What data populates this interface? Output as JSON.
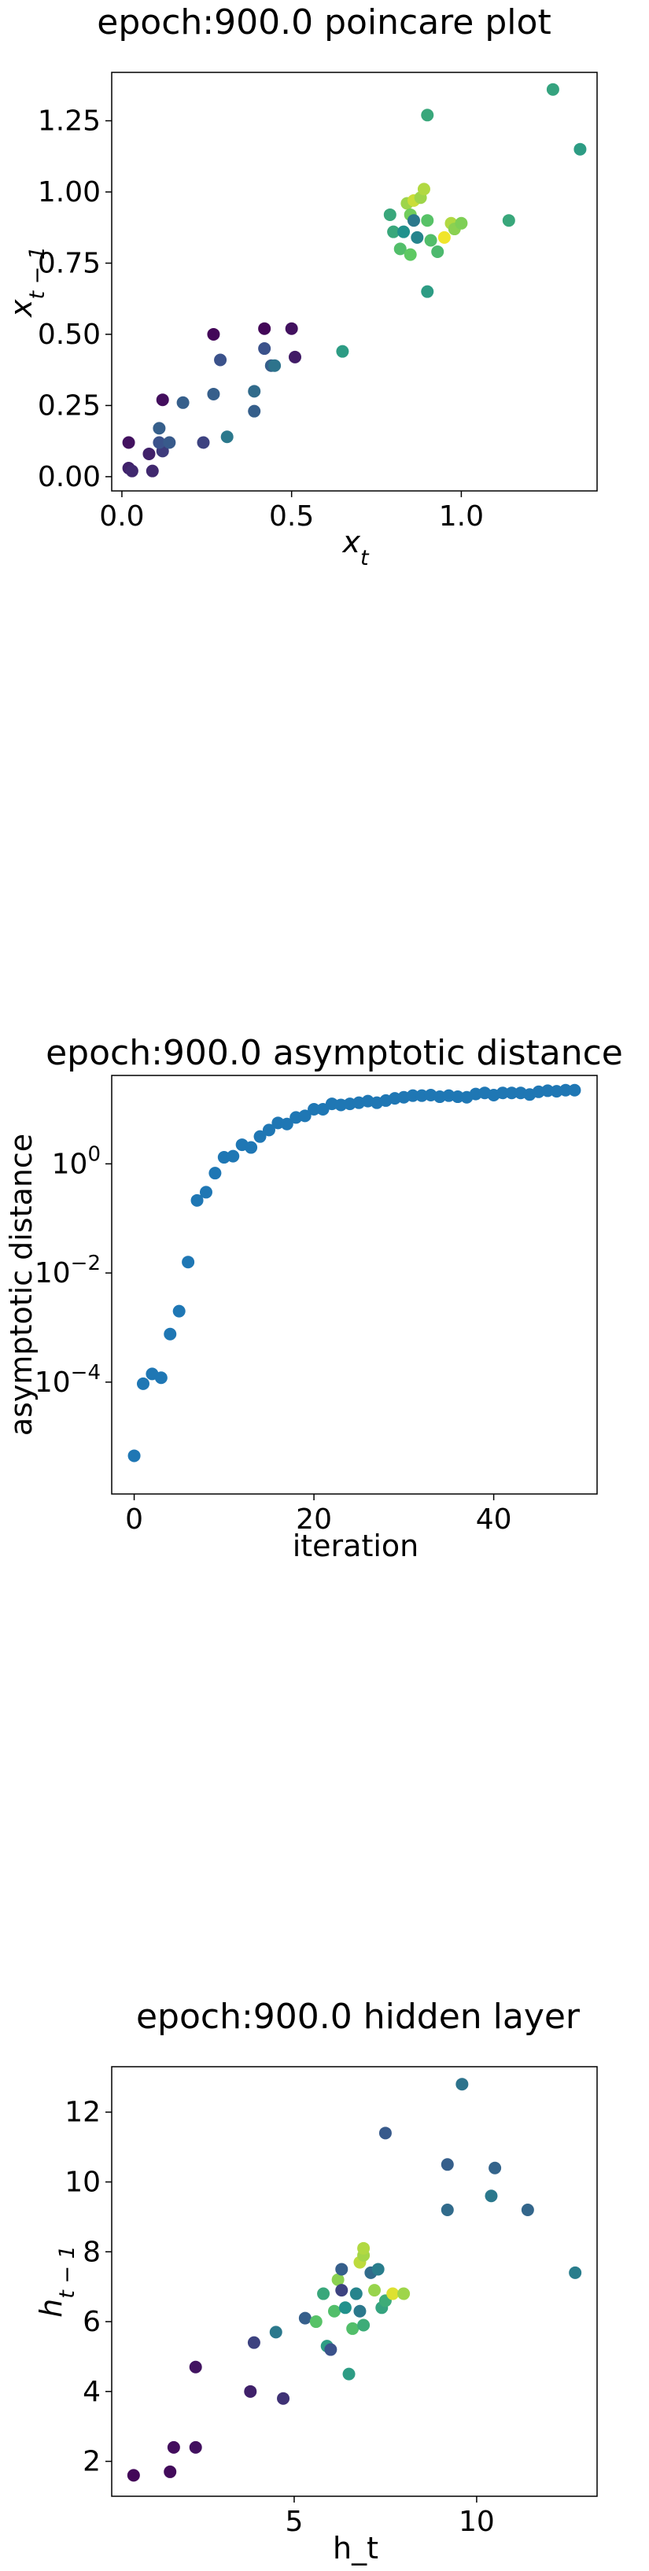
{
  "colors": {
    "series": "#1f77b4"
  },
  "chart_data": [
    {
      "type": "scatter",
      "title": "epoch:900.0 poincare plot",
      "xlabel": "x_t",
      "ylabel": "x_{t-1}",
      "xlim": [
        -0.03,
        1.4
      ],
      "ylim": [
        -0.05,
        1.42
      ],
      "xticks": [
        0.0,
        0.5,
        1.0
      ],
      "xtick_labels": [
        "0.0",
        "0.5",
        "1.0"
      ],
      "yticks": [
        0.0,
        0.25,
        0.5,
        0.75,
        1.0,
        1.25
      ],
      "ytick_labels": [
        "0.00",
        "0.25",
        "0.50",
        "0.75",
        "1.00",
        "1.25"
      ],
      "colormap": "viridis",
      "points": [
        {
          "x": 0.02,
          "y": 0.12,
          "c": 0.05
        },
        {
          "x": 0.02,
          "y": 0.03,
          "c": 0.1
        },
        {
          "x": 0.03,
          "y": 0.02,
          "c": 0.12
        },
        {
          "x": 0.08,
          "y": 0.08,
          "c": 0.1
        },
        {
          "x": 0.09,
          "y": 0.02,
          "c": 0.12
        },
        {
          "x": 0.12,
          "y": 0.09,
          "c": 0.18
        },
        {
          "x": 0.11,
          "y": 0.12,
          "c": 0.25
        },
        {
          "x": 0.11,
          "y": 0.17,
          "c": 0.3
        },
        {
          "x": 0.12,
          "y": 0.27,
          "c": 0.04
        },
        {
          "x": 0.14,
          "y": 0.12,
          "c": 0.28
        },
        {
          "x": 0.18,
          "y": 0.26,
          "c": 0.3
        },
        {
          "x": 0.24,
          "y": 0.12,
          "c": 0.2
        },
        {
          "x": 0.27,
          "y": 0.29,
          "c": 0.3
        },
        {
          "x": 0.27,
          "y": 0.5,
          "c": 0.02
        },
        {
          "x": 0.29,
          "y": 0.41,
          "c": 0.25
        },
        {
          "x": 0.31,
          "y": 0.14,
          "c": 0.4
        },
        {
          "x": 0.39,
          "y": 0.23,
          "c": 0.3
        },
        {
          "x": 0.39,
          "y": 0.3,
          "c": 0.35
        },
        {
          "x": 0.42,
          "y": 0.45,
          "c": 0.25
        },
        {
          "x": 0.42,
          "y": 0.52,
          "c": 0.02
        },
        {
          "x": 0.44,
          "y": 0.39,
          "c": 0.3
        },
        {
          "x": 0.45,
          "y": 0.39,
          "c": 0.38
        },
        {
          "x": 0.5,
          "y": 0.52,
          "c": 0.05
        },
        {
          "x": 0.51,
          "y": 0.42,
          "c": 0.08
        },
        {
          "x": 0.65,
          "y": 0.44,
          "c": 0.55
        },
        {
          "x": 0.79,
          "y": 0.92,
          "c": 0.6
        },
        {
          "x": 0.8,
          "y": 0.86,
          "c": 0.6
        },
        {
          "x": 0.82,
          "y": 0.8,
          "c": 0.7
        },
        {
          "x": 0.83,
          "y": 0.86,
          "c": 0.5
        },
        {
          "x": 0.84,
          "y": 0.96,
          "c": 0.85
        },
        {
          "x": 0.85,
          "y": 0.78,
          "c": 0.75
        },
        {
          "x": 0.85,
          "y": 0.92,
          "c": 0.78
        },
        {
          "x": 0.86,
          "y": 0.97,
          "c": 0.92
        },
        {
          "x": 0.86,
          "y": 0.9,
          "c": 0.4
        },
        {
          "x": 0.87,
          "y": 0.84,
          "c": 0.45
        },
        {
          "x": 0.88,
          "y": 0.98,
          "c": 0.85
        },
        {
          "x": 0.89,
          "y": 1.01,
          "c": 0.88
        },
        {
          "x": 0.9,
          "y": 0.9,
          "c": 0.72
        },
        {
          "x": 0.9,
          "y": 0.65,
          "c": 0.55
        },
        {
          "x": 0.9,
          "y": 1.27,
          "c": 0.6
        },
        {
          "x": 0.91,
          "y": 0.83,
          "c": 0.7
        },
        {
          "x": 0.93,
          "y": 0.79,
          "c": 0.68
        },
        {
          "x": 0.95,
          "y": 0.84,
          "c": 0.98
        },
        {
          "x": 0.97,
          "y": 0.89,
          "c": 0.88
        },
        {
          "x": 0.98,
          "y": 0.87,
          "c": 0.82
        },
        {
          "x": 1.0,
          "y": 0.89,
          "c": 0.8
        },
        {
          "x": 1.14,
          "y": 0.9,
          "c": 0.6
        },
        {
          "x": 1.27,
          "y": 1.36,
          "c": 0.58
        },
        {
          "x": 1.35,
          "y": 1.15,
          "c": 0.55
        }
      ]
    },
    {
      "type": "scatter",
      "title": "epoch:900.0 asymptotic distance",
      "xlabel": "iteration",
      "ylabel": "asymptotic distance",
      "yscale": "log",
      "xlim": [
        -2.5,
        51.5
      ],
      "ylim_log10": [
        -6.05,
        1.62
      ],
      "xticks": [
        0,
        20,
        40
      ],
      "xtick_labels": [
        "0",
        "20",
        "40"
      ],
      "ytick_exponents": [
        0,
        -2,
        -4
      ],
      "ytick_base": "10",
      "ytick_exps": [
        "0",
        "−2",
        "−4"
      ],
      "x": [
        0,
        1,
        2,
        3,
        4,
        5,
        6,
        7,
        8,
        9,
        10,
        11,
        12,
        13,
        14,
        15,
        16,
        17,
        18,
        19,
        20,
        21,
        22,
        23,
        24,
        25,
        26,
        27,
        28,
        29,
        30,
        31,
        32,
        33,
        34,
        35,
        36,
        37,
        38,
        39,
        40,
        41,
        42,
        43,
        44,
        45,
        46,
        47,
        48,
        49
      ],
      "log10_y": [
        -5.35,
        -4.03,
        -3.85,
        -3.92,
        -3.12,
        -2.7,
        -1.8,
        -0.67,
        -0.52,
        -0.17,
        0.12,
        0.14,
        0.35,
        0.3,
        0.5,
        0.62,
        0.75,
        0.73,
        0.85,
        0.88,
        1.0,
        1.0,
        1.1,
        1.08,
        1.1,
        1.12,
        1.15,
        1.12,
        1.16,
        1.2,
        1.22,
        1.25,
        1.25,
        1.26,
        1.23,
        1.25,
        1.23,
        1.22,
        1.28,
        1.3,
        1.26,
        1.3,
        1.3,
        1.3,
        1.27,
        1.32,
        1.34,
        1.33,
        1.35,
        1.35
      ]
    },
    {
      "type": "scatter",
      "title": "epoch:900.0 hidden layer",
      "xlabel": "h_t",
      "ylabel": "h_{t-1}",
      "xlim": [
        0.0,
        13.3
      ],
      "ylim": [
        1.0,
        13.3
      ],
      "xticks": [
        5,
        10
      ],
      "xtick_labels": [
        "5",
        "10"
      ],
      "yticks": [
        2,
        4,
        6,
        8,
        10,
        12
      ],
      "ytick_labels": [
        "2",
        "4",
        "6",
        "8",
        "10",
        "12"
      ],
      "colormap": "viridis",
      "points": [
        {
          "x": 0.6,
          "y": 1.6,
          "c": 0.02
        },
        {
          "x": 1.6,
          "y": 1.7,
          "c": 0.03
        },
        {
          "x": 1.7,
          "y": 2.4,
          "c": 0.04
        },
        {
          "x": 2.3,
          "y": 2.4,
          "c": 0.05
        },
        {
          "x": 2.3,
          "y": 4.7,
          "c": 0.06
        },
        {
          "x": 3.8,
          "y": 4.0,
          "c": 0.1
        },
        {
          "x": 3.9,
          "y": 5.4,
          "c": 0.2
        },
        {
          "x": 4.7,
          "y": 3.8,
          "c": 0.15
        },
        {
          "x": 4.5,
          "y": 5.7,
          "c": 0.4
        },
        {
          "x": 5.3,
          "y": 6.1,
          "c": 0.3
        },
        {
          "x": 5.6,
          "y": 6.0,
          "c": 0.72
        },
        {
          "x": 5.8,
          "y": 6.8,
          "c": 0.6
        },
        {
          "x": 5.9,
          "y": 5.3,
          "c": 0.55
        },
        {
          "x": 6.0,
          "y": 5.2,
          "c": 0.25
        },
        {
          "x": 6.1,
          "y": 6.3,
          "c": 0.7
        },
        {
          "x": 6.2,
          "y": 7.2,
          "c": 0.82
        },
        {
          "x": 6.3,
          "y": 6.9,
          "c": 0.2
        },
        {
          "x": 6.3,
          "y": 7.5,
          "c": 0.3
        },
        {
          "x": 6.4,
          "y": 6.4,
          "c": 0.5
        },
        {
          "x": 6.5,
          "y": 4.5,
          "c": 0.55
        },
        {
          "x": 6.6,
          "y": 5.8,
          "c": 0.7
        },
        {
          "x": 6.7,
          "y": 6.8,
          "c": 0.45
        },
        {
          "x": 6.8,
          "y": 7.7,
          "c": 0.9
        },
        {
          "x": 6.8,
          "y": 6.3,
          "c": 0.4
        },
        {
          "x": 6.9,
          "y": 7.9,
          "c": 0.86
        },
        {
          "x": 6.9,
          "y": 8.1,
          "c": 0.88
        },
        {
          "x": 6.9,
          "y": 5.9,
          "c": 0.62
        },
        {
          "x": 7.1,
          "y": 7.4,
          "c": 0.35
        },
        {
          "x": 7.2,
          "y": 6.9,
          "c": 0.84
        },
        {
          "x": 7.3,
          "y": 7.5,
          "c": 0.42
        },
        {
          "x": 7.4,
          "y": 6.4,
          "c": 0.58
        },
        {
          "x": 7.5,
          "y": 6.6,
          "c": 0.62
        },
        {
          "x": 7.5,
          "y": 11.4,
          "c": 0.28
        },
        {
          "x": 7.7,
          "y": 6.8,
          "c": 0.95
        },
        {
          "x": 8.0,
          "y": 6.8,
          "c": 0.85
        },
        {
          "x": 9.2,
          "y": 9.2,
          "c": 0.35
        },
        {
          "x": 9.2,
          "y": 10.5,
          "c": 0.3
        },
        {
          "x": 9.6,
          "y": 12.8,
          "c": 0.38
        },
        {
          "x": 10.4,
          "y": 9.6,
          "c": 0.4
        },
        {
          "x": 10.5,
          "y": 10.4,
          "c": 0.32
        },
        {
          "x": 11.4,
          "y": 9.2,
          "c": 0.33
        },
        {
          "x": 12.7,
          "y": 7.4,
          "c": 0.42
        }
      ]
    }
  ]
}
